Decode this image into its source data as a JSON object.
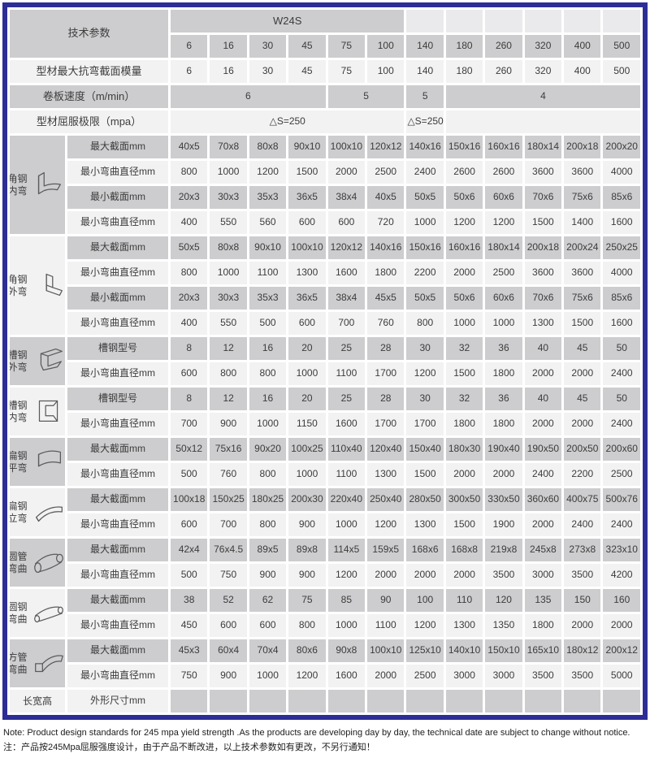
{
  "colors": {
    "border_navy": "#2d2d96",
    "cell_gray": "#cdcdcf",
    "cell_light": "#f2f2f2",
    "cell_header_light": "#eaeaec"
  },
  "header": {
    "tech_params_label": "技术参数",
    "model": "W24S",
    "columns": [
      "6",
      "16",
      "30",
      "45",
      "75",
      "100",
      "140",
      "180",
      "260",
      "320",
      "400",
      "500"
    ],
    "modulus_row": {
      "label": "型材最大抗弯截面模量",
      "values": [
        "6",
        "16",
        "30",
        "45",
        "75",
        "100",
        "140",
        "180",
        "260",
        "320",
        "400",
        "500"
      ]
    },
    "speed_row": {
      "label": "卷板速度（m/min）",
      "groups": [
        {
          "value": "6",
          "span": 4
        },
        {
          "value": "5",
          "span": 2
        },
        {
          "value": "5",
          "span": 1
        },
        {
          "value": "4",
          "span": 5
        }
      ]
    },
    "yield_row": {
      "label": "型材屈服极限（mpa）",
      "groups": [
        {
          "value": "△S=250",
          "span": 6
        },
        {
          "value": "△S=250",
          "span": 1
        },
        {
          "value": "",
          "span": 5
        }
      ]
    }
  },
  "sections": [
    {
      "label_lines": [
        "角钢",
        "内弯"
      ],
      "icon": "angle-inner-icon",
      "shade": "gray",
      "rows": [
        {
          "label": "最大截面mm",
          "shade": "gray",
          "values": [
            "40x5",
            "70x8",
            "80x8",
            "90x10",
            "100x10",
            "120x12",
            "140x16",
            "150x16",
            "160x16",
            "180x14",
            "200x18",
            "200x20"
          ]
        },
        {
          "label": "最小弯曲直径mm",
          "shade": "light",
          "values": [
            "800",
            "1000",
            "1200",
            "1500",
            "2000",
            "2500",
            "2400",
            "2600",
            "2600",
            "3600",
            "3600",
            "4000"
          ]
        },
        {
          "label": "最小截面mm",
          "shade": "gray",
          "values": [
            "20x3",
            "30x3",
            "35x3",
            "36x5",
            "38x4",
            "40x5",
            "50x5",
            "50x6",
            "60x6",
            "70x6",
            "75x6",
            "85x6"
          ]
        },
        {
          "label": "最小弯曲直径mm",
          "shade": "light",
          "values": [
            "400",
            "550",
            "560",
            "600",
            "600",
            "720",
            "1000",
            "1200",
            "1200",
            "1500",
            "1400",
            "1600"
          ]
        }
      ]
    },
    {
      "label_lines": [
        "角钢",
        "外弯"
      ],
      "icon": "angle-outer-icon",
      "shade": "light",
      "rows": [
        {
          "label": "最大截面mm",
          "shade": "gray",
          "values": [
            "50x5",
            "80x8",
            "90x10",
            "100x10",
            "120x12",
            "140x16",
            "150x16",
            "160x16",
            "180x14",
            "200x18",
            "200x24",
            "250x25"
          ]
        },
        {
          "label": "最小弯曲直径mm",
          "shade": "light",
          "values": [
            "800",
            "1000",
            "1100",
            "1300",
            "1600",
            "1800",
            "2200",
            "2000",
            "2500",
            "3600",
            "3600",
            "4000"
          ]
        },
        {
          "label": "最小截面mm",
          "shade": "gray",
          "values": [
            "20x3",
            "30x3",
            "35x3",
            "36x5",
            "38x4",
            "45x5",
            "50x5",
            "50x6",
            "60x6",
            "70x6",
            "75x6",
            "85x6"
          ]
        },
        {
          "label": "最小弯曲直径mm",
          "shade": "light",
          "values": [
            "400",
            "550",
            "500",
            "600",
            "700",
            "760",
            "800",
            "1000",
            "1000",
            "1300",
            "1500",
            "1600"
          ]
        }
      ]
    },
    {
      "label_lines": [
        "槽钢",
        "外弯"
      ],
      "icon": "channel-outer-icon",
      "shade": "gray",
      "rows": [
        {
          "label": "槽钢型号",
          "shade": "gray",
          "values": [
            "8",
            "12",
            "16",
            "20",
            "25",
            "28",
            "30",
            "32",
            "36",
            "40",
            "45",
            "50"
          ]
        },
        {
          "label": "最小弯曲直径mm",
          "shade": "light",
          "values": [
            "600",
            "800",
            "800",
            "1000",
            "1100",
            "1700",
            "1200",
            "1500",
            "1800",
            "2000",
            "2000",
            "2400"
          ]
        }
      ]
    },
    {
      "label_lines": [
        "槽钢",
        "内弯"
      ],
      "icon": "channel-inner-icon",
      "shade": "light",
      "rows": [
        {
          "label": "槽钢型号",
          "shade": "gray",
          "values": [
            "8",
            "12",
            "16",
            "20",
            "25",
            "28",
            "30",
            "32",
            "36",
            "40",
            "45",
            "50"
          ]
        },
        {
          "label": "最小弯曲直径mm",
          "shade": "light",
          "values": [
            "700",
            "900",
            "1000",
            "1150",
            "1600",
            "1700",
            "1700",
            "1800",
            "1800",
            "2000",
            "2000",
            "2400"
          ]
        }
      ]
    },
    {
      "label_lines": [
        "扁钢",
        "平弯"
      ],
      "icon": "flat-flat-icon",
      "shade": "gray",
      "rows": [
        {
          "label": "最大截面mm",
          "shade": "gray",
          "values": [
            "50x12",
            "75x16",
            "90x20",
            "100x25",
            "110x40",
            "120x40",
            "150x40",
            "180x30",
            "190x40",
            "190x50",
            "200x50",
            "200x60"
          ]
        },
        {
          "label": "最小弯曲直径mm",
          "shade": "light",
          "values": [
            "500",
            "760",
            "800",
            "1000",
            "1100",
            "1300",
            "1500",
            "2000",
            "2000",
            "2400",
            "2200",
            "2500"
          ]
        }
      ]
    },
    {
      "label_lines": [
        "扁钢",
        "立弯"
      ],
      "icon": "flat-vert-icon",
      "shade": "light",
      "rows": [
        {
          "label": "最大截面mm",
          "shade": "gray",
          "values": [
            "100x18",
            "150x25",
            "180x25",
            "200x30",
            "220x40",
            "250x40",
            "280x50",
            "300x50",
            "330x50",
            "360x60",
            "400x75",
            "500x76"
          ]
        },
        {
          "label": "最小弯曲直径mm",
          "shade": "light",
          "values": [
            "600",
            "700",
            "800",
            "900",
            "1000",
            "1200",
            "1300",
            "1500",
            "1900",
            "2000",
            "2400",
            "2400"
          ]
        }
      ]
    },
    {
      "label_lines": [
        "圆管",
        "弯曲"
      ],
      "icon": "round-tube-icon",
      "shade": "gray",
      "rows": [
        {
          "label": "最大截面mm",
          "shade": "gray",
          "values": [
            "42x4",
            "76x4.5",
            "89x5",
            "89x8",
            "114x5",
            "159x5",
            "168x6",
            "168x8",
            "219x8",
            "245x8",
            "273x8",
            "323x10"
          ]
        },
        {
          "label": "最小弯曲直径mm",
          "shade": "light",
          "values": [
            "500",
            "750",
            "900",
            "900",
            "1200",
            "2000",
            "2000",
            "2000",
            "3500",
            "3000",
            "3500",
            "4200"
          ]
        }
      ]
    },
    {
      "label_lines": [
        "圆钢",
        "弯曲"
      ],
      "icon": "round-bar-icon",
      "shade": "light",
      "rows": [
        {
          "label": "最大截面mm",
          "shade": "gray",
          "values": [
            "38",
            "52",
            "62",
            "75",
            "85",
            "90",
            "100",
            "110",
            "120",
            "135",
            "150",
            "160"
          ]
        },
        {
          "label": "最小弯曲直径mm",
          "shade": "light",
          "values": [
            "450",
            "600",
            "600",
            "800",
            "1000",
            "1100",
            "1200",
            "1300",
            "1350",
            "1800",
            "2000",
            "2000"
          ]
        }
      ]
    },
    {
      "label_lines": [
        "方管",
        "弯曲"
      ],
      "icon": "square-tube-icon",
      "shade": "gray",
      "rows": [
        {
          "label": "最大截面mm",
          "shade": "gray",
          "values": [
            "45x3",
            "60x4",
            "70x4",
            "80x6",
            "90x8",
            "100x10",
            "125x10",
            "140x10",
            "150x10",
            "165x10",
            "180x12",
            "200x12"
          ]
        },
        {
          "label": "最小弯曲直径mm",
          "shade": "light",
          "values": [
            "750",
            "900",
            "1000",
            "1200",
            "1600",
            "2000",
            "2500",
            "3000",
            "3000",
            "3500",
            "3500",
            "5000"
          ]
        }
      ]
    },
    {
      "label_lines": [
        "长宽高"
      ],
      "icon": "",
      "shade": "light",
      "rows": [
        {
          "label": "外形尺寸mm",
          "shade": "gray",
          "label_shade": "light",
          "values": [
            "",
            "",
            "",
            "",
            "",
            "",
            "",
            "",
            "",
            "",
            "",
            ""
          ]
        }
      ]
    }
  ],
  "notes": {
    "en": "Note: Product design standards for 245 mpa yield strength .As the products are developing day by day, the technical date are subject to change without notice.",
    "zh": "注：产品按245Mpa屈服强度设计，由于产品不断改进，以上技术参数如有更改，不另行通知！"
  }
}
